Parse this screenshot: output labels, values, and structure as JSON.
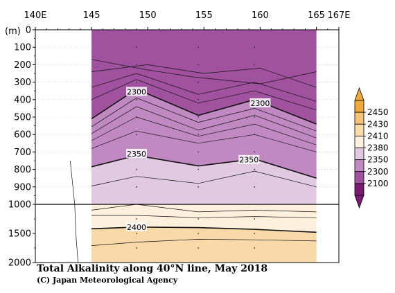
{
  "chart_data": {
    "type": "contour-section",
    "title": "Total Alkalinity along 40°N line, May 2018",
    "credit": "(C) Japan Meteorological Agency",
    "depth_unit_label": "(m)",
    "x_ticks": [
      {
        "value": 140,
        "label": "140E"
      },
      {
        "value": 145,
        "label": "145"
      },
      {
        "value": 150,
        "label": "150"
      },
      {
        "value": 155,
        "label": "155"
      },
      {
        "value": 160,
        "label": "160"
      },
      {
        "value": 165,
        "label": "165"
      },
      {
        "value": 167,
        "label": "167E"
      }
    ],
    "xlim": [
      140,
      167
    ],
    "upper_depth_ticks": [
      "0",
      "100",
      "200",
      "300",
      "400",
      "500",
      "600",
      "700",
      "800",
      "900",
      "1000"
    ],
    "lower_depth_ticks": [
      "1500",
      "2000"
    ],
    "upper_depth_range": [
      0,
      1000
    ],
    "lower_depth_range": [
      1000,
      2000
    ],
    "data_x_range": [
      145,
      165
    ],
    "station_lons": [
      149.0,
      154.5,
      159.5
    ],
    "contour_labels": [
      {
        "text": "2300",
        "lon": 149.0,
        "depth": 355
      },
      {
        "text": "2300",
        "lon": 160.0,
        "depth": 420
      },
      {
        "text": "2350",
        "lon": 149.0,
        "depth": 710
      },
      {
        "text": "2350",
        "lon": 159.0,
        "depth": 745
      },
      {
        "text": "2400",
        "lon": 149.0,
        "depth": 1390
      }
    ],
    "contour_lines": [
      {
        "thick": false,
        "points": [
          [
            145,
            170
          ],
          [
            150,
            230
          ],
          [
            154,
            270
          ],
          [
            160,
            310
          ],
          [
            165,
            240
          ]
        ]
      },
      {
        "thick": false,
        "points": [
          [
            145,
            240
          ],
          [
            150,
            200
          ],
          [
            155,
            250
          ],
          [
            160,
            220
          ],
          [
            165,
            330
          ]
        ]
      },
      {
        "thick": false,
        "points": [
          [
            145,
            330
          ],
          [
            149,
            250
          ],
          [
            154.5,
            370
          ],
          [
            159.5,
            300
          ],
          [
            165,
            410
          ]
        ]
      },
      {
        "thick": false,
        "points": [
          [
            145,
            400
          ],
          [
            149,
            285
          ],
          [
            154.5,
            420
          ],
          [
            159.5,
            350
          ],
          [
            165,
            460
          ]
        ]
      },
      {
        "thick": true,
        "points": [
          [
            145,
            510
          ],
          [
            149,
            340
          ],
          [
            154.5,
            490
          ],
          [
            159.5,
            400
          ],
          [
            165,
            540
          ]
        ]
      },
      {
        "thick": false,
        "points": [
          [
            145,
            555
          ],
          [
            149,
            390
          ],
          [
            154.5,
            530
          ],
          [
            159.5,
            450
          ],
          [
            165,
            580
          ]
        ]
      },
      {
        "thick": false,
        "points": [
          [
            145,
            595
          ],
          [
            149,
            440
          ],
          [
            154.5,
            575
          ],
          [
            159.5,
            490
          ],
          [
            165,
            620
          ]
        ]
      },
      {
        "thick": false,
        "points": [
          [
            145,
            635
          ],
          [
            149,
            500
          ],
          [
            154.5,
            610
          ],
          [
            159.5,
            540
          ],
          [
            165,
            660
          ]
        ]
      },
      {
        "thick": false,
        "points": [
          [
            145,
            680
          ],
          [
            149,
            580
          ],
          [
            154.5,
            650
          ],
          [
            159.5,
            600
          ],
          [
            165,
            700
          ]
        ]
      },
      {
        "thick": true,
        "points": [
          [
            145,
            785
          ],
          [
            149,
            720
          ],
          [
            154.5,
            780
          ],
          [
            159.5,
            740
          ],
          [
            165,
            850
          ]
        ]
      },
      {
        "thick": false,
        "points": [
          [
            145,
            895
          ],
          [
            149,
            840
          ],
          [
            154.5,
            880
          ],
          [
            159.5,
            810
          ],
          [
            165,
            900
          ]
        ]
      },
      {
        "thick": false,
        "points": [
          [
            145,
            1100
          ],
          [
            149,
            1000
          ],
          [
            154.5,
            1130
          ],
          [
            159.5,
            1100
          ],
          [
            165,
            1130
          ]
        ]
      },
      {
        "thick": false,
        "points": [
          [
            145,
            1190
          ],
          [
            149,
            1190
          ],
          [
            154.5,
            1230
          ],
          [
            159.5,
            1210
          ],
          [
            165,
            1230
          ]
        ]
      },
      {
        "thick": true,
        "points": [
          [
            145,
            1420
          ],
          [
            149,
            1390
          ],
          [
            154.5,
            1400
          ],
          [
            159.5,
            1430
          ],
          [
            165,
            1480
          ]
        ]
      },
      {
        "thick": false,
        "points": [
          [
            145,
            1710
          ],
          [
            149,
            1650
          ],
          [
            154.5,
            1600
          ],
          [
            159.5,
            1610
          ],
          [
            165,
            1630
          ]
        ]
      },
      {
        "thick": false,
        "points": [
          [
            143.1,
            750
          ],
          [
            143.5,
            1000
          ],
          [
            143.6,
            1500
          ],
          [
            143.8,
            2000
          ]
        ]
      }
    ],
    "fill_bands": [
      {
        "color": "#a0529e",
        "upper": null,
        "lower": [
          [
            145,
            510
          ],
          [
            149,
            340
          ],
          [
            154.5,
            490
          ],
          [
            159.5,
            400
          ],
          [
            165,
            540
          ]
        ]
      },
      {
        "color": "#c189c1",
        "upper": [
          [
            145,
            510
          ],
          [
            149,
            340
          ],
          [
            154.5,
            490
          ],
          [
            159.5,
            400
          ],
          [
            165,
            540
          ]
        ],
        "lower": [
          [
            145,
            785
          ],
          [
            149,
            720
          ],
          [
            154.5,
            780
          ],
          [
            159.5,
            740
          ],
          [
            165,
            850
          ]
        ]
      },
      {
        "color": "#e1c9e2",
        "upper": [
          [
            145,
            785
          ],
          [
            149,
            720
          ],
          [
            154.5,
            780
          ],
          [
            159.5,
            740
          ],
          [
            165,
            850
          ]
        ],
        "lower": [
          [
            145,
            1000
          ],
          [
            165,
            1000
          ]
        ]
      },
      {
        "color": "#fdf0dc",
        "upper": [
          [
            145,
            1000
          ],
          [
            165,
            1000
          ]
        ],
        "lower": [
          [
            145,
            1420
          ],
          [
            149,
            1390
          ],
          [
            154.5,
            1400
          ],
          [
            159.5,
            1430
          ],
          [
            165,
            1480
          ]
        ]
      },
      {
        "color": "#f8d9a8",
        "upper": [
          [
            145,
            1420
          ],
          [
            149,
            1390
          ],
          [
            154.5,
            1400
          ],
          [
            159.5,
            1430
          ],
          [
            165,
            1480
          ]
        ],
        "lower": null
      }
    ],
    "colorbar": {
      "labels": [
        "2450",
        "2430",
        "2410",
        "2380",
        "2350",
        "2300",
        "2100"
      ],
      "colors": [
        "#f2a93b",
        "#f7c27a",
        "#fadcaa",
        "#fdf0dc",
        "#e1c9e2",
        "#c189c1",
        "#a0529e",
        "#7a1a73"
      ],
      "top_arrow_color": "#f2a93b",
      "bottom_arrow_color": "#7a1a73"
    }
  }
}
